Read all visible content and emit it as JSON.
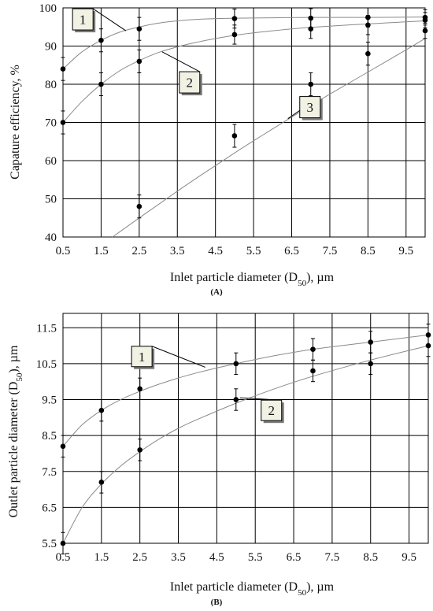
{
  "chart_data": [
    {
      "panel": "(A)",
      "type": "scatter",
      "xlabel": "Inlet particle diameter (D",
      "xlabel_sub": "50",
      "xlabel_suffix": "), µm",
      "ylabel": "Capature efficiency,  %",
      "xlim": [
        0.5,
        10
      ],
      "ylim": [
        40,
        100
      ],
      "xticks": [
        "0.5",
        "1.5",
        "2.5",
        "3.5",
        "4.5",
        "5.5",
        "6.5",
        "7.5",
        "8.5",
        "9.5"
      ],
      "yticks": [
        "40",
        "50",
        "60",
        "70",
        "80",
        "90",
        "100"
      ],
      "grid": true,
      "series": [
        {
          "name": "1",
          "points": [
            {
              "x": 0.5,
              "y": 84,
              "err": 3
            },
            {
              "x": 1.5,
              "y": 91.5,
              "err": 3
            },
            {
              "x": 2.5,
              "y": 94.5,
              "err": 3
            },
            {
              "x": 5,
              "y": 97.2,
              "err": 2.5
            },
            {
              "x": 7,
              "y": 97.3,
              "err": 2.5
            },
            {
              "x": 8.5,
              "y": 97.5,
              "err": 2.5
            },
            {
              "x": 10,
              "y": 97.5,
              "err": 2
            }
          ],
          "curve": [
            [
              0.5,
              84
            ],
            [
              1,
              88.5
            ],
            [
              1.5,
              91.5
            ],
            [
              2,
              93.7
            ],
            [
              2.5,
              95
            ],
            [
              3,
              96
            ],
            [
              3.5,
              96.6
            ],
            [
              4,
              97
            ],
            [
              5,
              97.3
            ],
            [
              6,
              97.4
            ],
            [
              7,
              97.5
            ],
            [
              8.5,
              97.5
            ],
            [
              10,
              97.6
            ]
          ]
        },
        {
          "name": "2",
          "points": [
            {
              "x": 0.5,
              "y": 70,
              "err": 3
            },
            {
              "x": 1.5,
              "y": 80,
              "err": 3
            },
            {
              "x": 2.5,
              "y": 86,
              "err": 3
            },
            {
              "x": 5,
              "y": 93,
              "err": 2.5
            },
            {
              "x": 7,
              "y": 94.5,
              "err": 2.5
            },
            {
              "x": 8.5,
              "y": 95.5,
              "err": 2.5
            },
            {
              "x": 10,
              "y": 96.8,
              "err": 2
            }
          ],
          "curve": [
            [
              0.5,
              70
            ],
            [
              1,
              75.5
            ],
            [
              1.5,
              80
            ],
            [
              2,
              83.6
            ],
            [
              2.5,
              86.2
            ],
            [
              3,
              88.3
            ],
            [
              3.5,
              89.8
            ],
            [
              4,
              91
            ],
            [
              5,
              92.8
            ],
            [
              6,
              94
            ],
            [
              7,
              94.9
            ],
            [
              8.5,
              95.8
            ],
            [
              10,
              96.6
            ]
          ]
        },
        {
          "name": "3",
          "points": [
            {
              "x": 2.5,
              "y": 48,
              "err": 3
            },
            {
              "x": 5,
              "y": 66.5,
              "err": 3
            },
            {
              "x": 7,
              "y": 80,
              "err": 3
            },
            {
              "x": 8.5,
              "y": 88,
              "err": 3
            },
            {
              "x": 10,
              "y": 94,
              "err": 2
            }
          ],
          "curve": [
            [
              1.8,
              40
            ],
            [
              2.5,
              45
            ],
            [
              3,
              48.5
            ],
            [
              3.5,
              52
            ],
            [
              4,
              55.4
            ],
            [
              4.5,
              58.7
            ],
            [
              5,
              62
            ],
            [
              5.5,
              65.2
            ],
            [
              6,
              68.3
            ],
            [
              6.5,
              71.4
            ],
            [
              7,
              74.4
            ],
            [
              7.5,
              77.4
            ],
            [
              8,
              80.3
            ],
            [
              8.5,
              83.2
            ],
            [
              9,
              86.1
            ],
            [
              9.5,
              89
            ],
            [
              10,
              92
            ]
          ]
        }
      ],
      "callouts": [
        {
          "label": "1",
          "box": [
            1.02,
            97
          ],
          "target": [
            2.15,
            94
          ]
        },
        {
          "label": "2",
          "box": [
            3.82,
            80.5
          ],
          "target": [
            3.1,
            88.5
          ]
        },
        {
          "label": "3",
          "box": [
            6.98,
            74
          ],
          "target": [
            6.4,
            71
          ]
        }
      ]
    },
    {
      "panel": "(B)",
      "type": "scatter",
      "xlabel": "Inlet particle diameter (D",
      "xlabel_sub": "50",
      "xlabel_suffix": "), µm",
      "ylabel": "Outlet particle diameter (D",
      "ylabel_sub": "50",
      "ylabel_suffix": "), µm",
      "xlim": [
        0.5,
        10
      ],
      "ylim": [
        5.5,
        11.9
      ],
      "xticks": [
        "0.5",
        "1.5",
        "2.5",
        "3.5",
        "4.5",
        "5.5",
        "6.5",
        "7.5",
        "8.5",
        "9.5"
      ],
      "yticks": [
        "5.5",
        "6.5",
        "7.5",
        "8.5",
        "9.5",
        "10.5",
        "11.5"
      ],
      "grid": true,
      "series": [
        {
          "name": "1",
          "points": [
            {
              "x": 0.5,
              "y": 8.2,
              "err": 0.3
            },
            {
              "x": 1.5,
              "y": 9.2,
              "err": 0.3
            },
            {
              "x": 2.5,
              "y": 9.8,
              "err": 0.3
            },
            {
              "x": 5,
              "y": 10.5,
              "err": 0.3
            },
            {
              "x": 7,
              "y": 10.9,
              "err": 0.3
            },
            {
              "x": 8.5,
              "y": 11.1,
              "err": 0.3
            },
            {
              "x": 10,
              "y": 11.3,
              "err": 0.3
            }
          ],
          "curve": [
            [
              0.5,
              8.2
            ],
            [
              1,
              8.8
            ],
            [
              1.5,
              9.2
            ],
            [
              2,
              9.5
            ],
            [
              2.5,
              9.73
            ],
            [
              3,
              9.93
            ],
            [
              3.5,
              10.1
            ],
            [
              4,
              10.25
            ],
            [
              5,
              10.5
            ],
            [
              6,
              10.72
            ],
            [
              7,
              10.9
            ],
            [
              8.5,
              11.1
            ],
            [
              10,
              11.3
            ]
          ]
        },
        {
          "name": "2",
          "points": [
            {
              "x": 0.5,
              "y": 5.5,
              "err": 0.3
            },
            {
              "x": 1.5,
              "y": 7.2,
              "err": 0.3
            },
            {
              "x": 2.5,
              "y": 8.1,
              "err": 0.3
            },
            {
              "x": 5,
              "y": 9.5,
              "err": 0.3
            },
            {
              "x": 7,
              "y": 10.3,
              "err": 0.3
            },
            {
              "x": 8.5,
              "y": 10.5,
              "err": 0.3
            },
            {
              "x": 10,
              "y": 11,
              "err": 0.3
            }
          ],
          "curve": [
            [
              0.5,
              5.5
            ],
            [
              1,
              6.5
            ],
            [
              1.5,
              7.15
            ],
            [
              2,
              7.65
            ],
            [
              2.5,
              8.05
            ],
            [
              3,
              8.4
            ],
            [
              3.5,
              8.7
            ],
            [
              4,
              8.95
            ],
            [
              5,
              9.4
            ],
            [
              6,
              9.8
            ],
            [
              7,
              10.15
            ],
            [
              8.5,
              10.6
            ],
            [
              10,
              11
            ]
          ]
        }
      ],
      "callouts": [
        {
          "label": "1",
          "box": [
            2.55,
            10.7
          ],
          "target": [
            4.2,
            10.4
          ]
        },
        {
          "label": "2",
          "box": [
            5.92,
            9.2
          ],
          "target": [
            5.1,
            9.55
          ]
        }
      ]
    }
  ]
}
